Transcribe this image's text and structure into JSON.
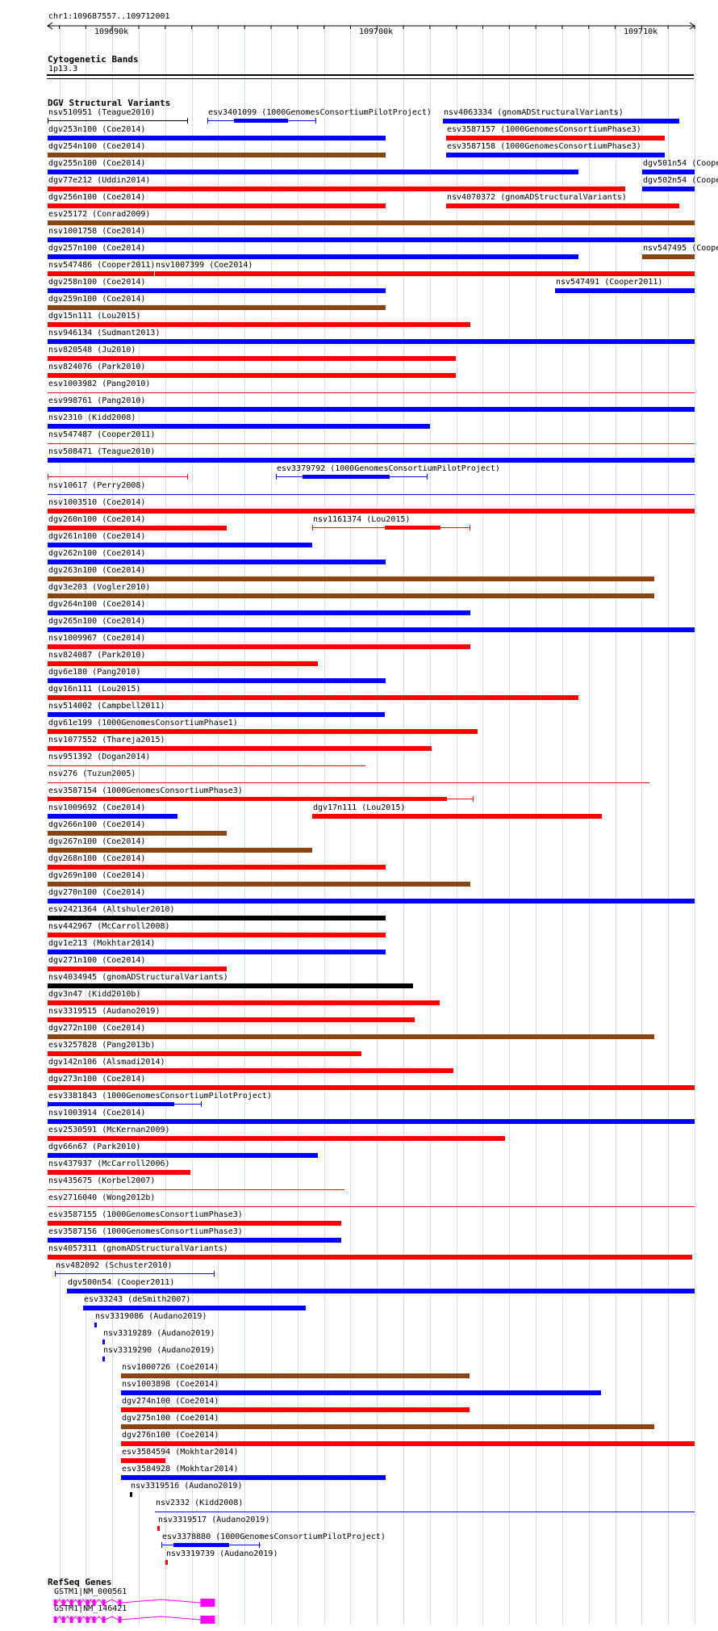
{
  "locus": "chr1:109687557..109712001",
  "ruler": {
    "start": 109687557,
    "end": 109712001,
    "ticks": [
      {
        "pos": 109690000,
        "label": "109690k"
      },
      {
        "pos": 109700000,
        "label": "109700k"
      },
      {
        "pos": 109710000,
        "label": "109710k"
      }
    ]
  },
  "cytoband": {
    "title": "Cytogenetic Bands",
    "band": "1p13.3"
  },
  "colors": {
    "blue": "#0000ff",
    "red": "#ff0000",
    "brown": "#8b4513",
    "black": "#000000",
    "magenta": "#ff00ff",
    "grid": "#c8e2f0"
  },
  "dgv_title": "DGV Structural Variants",
  "variants": [
    {
      "label": "nsv510951 (Teague2010)",
      "start": 109687557,
      "end": 109692870,
      "color": "black",
      "style": "line",
      "row": 0
    },
    {
      "label": "esv3401099 (1000GenomesConsortiumPilotProject)",
      "start": 109693600,
      "end": 109697720,
      "color": "blue",
      "style": "line",
      "inner": [
        109694600,
        109696640
      ],
      "row": 0
    },
    {
      "label": "nsv4063334 (gnomADStructuralVariants)",
      "start": 109702480,
      "end": 109711420,
      "color": "blue",
      "style": "bar",
      "row": 0
    },
    {
      "label": "dgv253n100 (Coe2014)",
      "start": 109687557,
      "end": 109700340,
      "color": "blue",
      "style": "bar",
      "row": 1
    },
    {
      "label": "esv3587157 (1000GenomesConsortiumPhase3)",
      "start": 109702600,
      "end": 109710850,
      "color": "red",
      "style": "bar",
      "row": 1
    },
    {
      "label": "dgv254n100 (Coe2014)",
      "start": 109687557,
      "end": 109700340,
      "color": "brown",
      "style": "bar",
      "row": 2
    },
    {
      "label": "esv3587158 (1000GenomesConsortiumPhase3)",
      "start": 109702600,
      "end": 109710850,
      "color": "blue",
      "style": "bar",
      "row": 2
    },
    {
      "label": "dgv255n100 (Coe2014)",
      "start": 109687557,
      "end": 109707620,
      "color": "blue",
      "style": "bar",
      "row": 3
    },
    {
      "label": "dgv501n54 (Cooper2011)",
      "start": 109710020,
      "end": 109712001,
      "color": "blue",
      "style": "bar",
      "row": 3
    },
    {
      "label": "dgv77e212 (Uddin2014)",
      "start": 109687557,
      "end": 109709370,
      "color": "red",
      "style": "bar",
      "row": 4
    },
    {
      "label": "dgv502n54 (Cooper2011)",
      "start": 109710020,
      "end": 109712001,
      "color": "blue",
      "style": "bar",
      "row": 4
    },
    {
      "label": "dgv256n100 (Coe2014)",
      "start": 109687557,
      "end": 109700340,
      "color": "red",
      "style": "bar",
      "row": 5
    },
    {
      "label": "nsv4070372 (gnomADStructuralVariants)",
      "start": 109702600,
      "end": 109711420,
      "color": "red",
      "style": "bar",
      "row": 5
    },
    {
      "label": "esv25172 (Conrad2009)",
      "start": 109687557,
      "end": 109712001,
      "color": "brown",
      "style": "bar",
      "row": 6
    },
    {
      "label": "nsv1001758 (Coe2014)",
      "start": 109687557,
      "end": 109712001,
      "color": "blue",
      "style": "bar",
      "row": 7
    },
    {
      "label": "dgv257n100 (Coe2014)",
      "start": 109687557,
      "end": 109707620,
      "color": "blue",
      "style": "bar",
      "row": 8
    },
    {
      "label": "nsv547495 (Cooper2011)",
      "start": 109710020,
      "end": 109712001,
      "color": "brown",
      "style": "bar",
      "row": 8
    },
    {
      "label": "nsv547486 (Cooper2011)",
      "start": 109687557,
      "end": 109691570,
      "color": "red",
      "style": "bar",
      "row": 9
    },
    {
      "label": "nsv1007399 (Coe2014)",
      "start": 109691620,
      "end": 109712001,
      "color": "red",
      "style": "bar",
      "row": 9
    },
    {
      "label": "dgv258n100 (Coe2014)",
      "start": 109687557,
      "end": 109700340,
      "color": "blue",
      "style": "bar",
      "row": 10
    },
    {
      "label": "nsv547491 (Cooper2011)",
      "start": 109706740,
      "end": 109712001,
      "color": "blue",
      "style": "bar",
      "row": 10
    },
    {
      "label": "dgv259n100 (Coe2014)",
      "start": 109687557,
      "end": 109700340,
      "color": "brown",
      "style": "bar",
      "row": 11
    },
    {
      "label": "dgv15n111 (Lou2015)",
      "start": 109687557,
      "end": 109703520,
      "color": "red",
      "style": "bar",
      "row": 12
    },
    {
      "label": "nsv946134 (Sudmant2013)",
      "start": 109687557,
      "end": 109712001,
      "color": "blue",
      "style": "bar",
      "row": 13
    },
    {
      "label": "nsv820548 (Ju2010)",
      "start": 109687557,
      "end": 109702970,
      "color": "red",
      "style": "bar",
      "row": 14
    },
    {
      "label": "nsv824076 (Park2010)",
      "start": 109687557,
      "end": 109702970,
      "color": "red",
      "style": "bar",
      "row": 15
    },
    {
      "label": "esv1003982 (Pang2010)",
      "start": 109687557,
      "end": 109712001,
      "color": "red",
      "style": "thin",
      "row": 16
    },
    {
      "label": "esv998761 (Pang2010)",
      "start": 109687557,
      "end": 109712001,
      "color": "blue",
      "style": "bar",
      "row": 17
    },
    {
      "label": "nsv2310 (Kidd2008)",
      "start": 109687557,
      "end": 109701990,
      "color": "blue",
      "style": "bar",
      "row": 18
    },
    {
      "label": "nsv547487 (Cooper2011)",
      "start": 109687557,
      "end": 109712001,
      "color": "red",
      "style": "thin",
      "row": 19
    },
    {
      "label": "nsv508471 (Teague2010)",
      "start": 109687557,
      "end": 109712001,
      "color": "blue",
      "style": "bar",
      "row": 20
    },
    {
      "label": "nsv508471 (Teague2010)",
      "start": 109687557,
      "end": 109692870,
      "color": "red",
      "style": "line",
      "row": 21,
      "hide_label": true
    },
    {
      "label": "esv3379792 (1000GenomesConsortiumPilotProject)",
      "start": 109696180,
      "end": 109701920,
      "color": "blue",
      "style": "line",
      "inner": [
        109697200,
        109700500
      ],
      "row": 21
    },
    {
      "label": "nsv10617 (Perry2008)",
      "start": 109687557,
      "end": 109712001,
      "color": "blue",
      "style": "thin",
      "row": 22
    },
    {
      "label": "nsv1003510 (Coe2014)",
      "start": 109687557,
      "end": 109712001,
      "color": "red",
      "style": "bar",
      "row": 23
    },
    {
      "label": "dgv260n100 (Coe2014)",
      "start": 109687557,
      "end": 109694320,
      "color": "red",
      "style": "bar",
      "row": 24
    },
    {
      "label": "nsv1161374 (Lou2015)",
      "start": 109697540,
      "end": 109703520,
      "color": "red",
      "style": "line",
      "inner": [
        109700300,
        109702400
      ],
      "row": 24
    },
    {
      "label": "dgv261n100 (Coe2014)",
      "start": 109687557,
      "end": 109697540,
      "color": "blue",
      "style": "bar",
      "row": 25
    },
    {
      "label": "dgv262n100 (Coe2014)",
      "start": 109687557,
      "end": 109700340,
      "color": "blue",
      "style": "bar",
      "row": 26
    },
    {
      "label": "dgv263n100 (Coe2014)",
      "start": 109687557,
      "end": 109710490,
      "color": "brown",
      "style": "bar",
      "row": 27
    },
    {
      "label": "dgv3e203 (Vogler2010)",
      "start": 109687557,
      "end": 109710490,
      "color": "brown",
      "style": "bar",
      "row": 28
    },
    {
      "label": "dgv264n100 (Coe2014)",
      "start": 109687557,
      "end": 109703520,
      "color": "blue",
      "style": "bar",
      "row": 29
    },
    {
      "label": "dgv265n100 (Coe2014)",
      "start": 109687557,
      "end": 109712001,
      "color": "blue",
      "style": "bar",
      "row": 30
    },
    {
      "label": "nsv1009967 (Coe2014)",
      "start": 109687557,
      "end": 109703520,
      "color": "red",
      "style": "bar",
      "row": 31
    },
    {
      "label": "nsv824087 (Park2010)",
      "start": 109687557,
      "end": 109697780,
      "color": "red",
      "style": "bar",
      "row": 32
    },
    {
      "label": "dgv6e180 (Pang2010)",
      "start": 109687557,
      "end": 109700340,
      "color": "blue",
      "style": "bar",
      "row": 33
    },
    {
      "label": "dgv16n111 (Lou2015)",
      "start": 109687557,
      "end": 109707620,
      "color": "red",
      "style": "bar",
      "row": 34
    },
    {
      "label": "nsv514002 (Campbell2011)",
      "start": 109687557,
      "end": 109700300,
      "color": "blue",
      "style": "bar",
      "row": 35
    },
    {
      "label": "dgv61e199 (1000GenomesConsortiumPhase1)",
      "start": 109687557,
      "end": 109703790,
      "color": "red",
      "style": "bar",
      "row": 36
    },
    {
      "label": "nsv1077552 (Thareja2015)",
      "start": 109687557,
      "end": 109702080,
      "color": "red",
      "style": "bar",
      "row": 37
    },
    {
      "label": "nsv951392 (Dogan2014)",
      "start": 109687557,
      "end": 109699560,
      "color": "red",
      "style": "thin",
      "row": 38
    },
    {
      "label": "nsv276 (Tuzun2005)",
      "start": 109687557,
      "end": 109710300,
      "color": "red",
      "style": "thin",
      "row": 39
    },
    {
      "label": "esv3587154 (1000GenomesConsortiumPhase3)",
      "start": 109687557,
      "end": 109703650,
      "color": "red",
      "style": "line",
      "inner": [
        109687557,
        109702650
      ],
      "row": 40
    },
    {
      "label": "nsv1009692 (Coe2014)",
      "start": 109687557,
      "end": 109692450,
      "color": "blue",
      "style": "bar",
      "row": 41
    },
    {
      "label": "dgv17n111 (Lou2015)",
      "start": 109697540,
      "end": 109708480,
      "color": "red",
      "style": "bar",
      "row": 41
    },
    {
      "label": "dgv266n100 (Coe2014)",
      "start": 109687557,
      "end": 109694320,
      "color": "brown",
      "style": "bar",
      "row": 42
    },
    {
      "label": "dgv267n100 (Coe2014)",
      "start": 109687557,
      "end": 109697540,
      "color": "brown",
      "style": "bar",
      "row": 43
    },
    {
      "label": "dgv268n100 (Coe2014)",
      "start": 109687557,
      "end": 109700340,
      "color": "red",
      "style": "bar",
      "row": 44
    },
    {
      "label": "dgv269n100 (Coe2014)",
      "start": 109687557,
      "end": 109703520,
      "color": "brown",
      "style": "bar",
      "row": 45
    },
    {
      "label": "dgv270n100 (Coe2014)",
      "start": 109687557,
      "end": 109712001,
      "color": "blue",
      "style": "bar",
      "row": 46
    },
    {
      "label": "esv2421364 (Altshuler2010)",
      "start": 109687557,
      "end": 109700340,
      "color": "black",
      "style": "bar",
      "row": 47
    },
    {
      "label": "nsv442967 (McCarroll2008)",
      "start": 109687557,
      "end": 109700340,
      "color": "red",
      "style": "bar",
      "row": 48
    },
    {
      "label": "dgv1e213 (Mokhtar2014)",
      "start": 109687557,
      "end": 109700340,
      "color": "blue",
      "style": "bar",
      "row": 49
    },
    {
      "label": "dgv271n100 (Coe2014)",
      "start": 109687557,
      "end": 109694320,
      "color": "red",
      "style": "bar",
      "row": 50
    },
    {
      "label": "nsv4034945 (gnomADStructuralVariants)",
      "start": 109687557,
      "end": 109701370,
      "color": "black",
      "style": "bar",
      "row": 51
    },
    {
      "label": "dgv3n47 (Kidd2010b)",
      "start": 109687557,
      "end": 109702380,
      "color": "red",
      "style": "bar",
      "row": 52
    },
    {
      "label": "nsv3319515 (Audano2019)",
      "start": 109687557,
      "end": 109701430,
      "color": "red",
      "style": "bar",
      "row": 53
    },
    {
      "label": "dgv272n100 (Coe2014)",
      "start": 109687557,
      "end": 109710490,
      "color": "brown",
      "style": "bar",
      "row": 54
    },
    {
      "label": "esv3257828 (Pang2013b)",
      "start": 109687557,
      "end": 109699410,
      "color": "red",
      "style": "bar",
      "row": 55
    },
    {
      "label": "dgv142n106 (Alsmadi2014)",
      "start": 109687557,
      "end": 109702880,
      "color": "red",
      "style": "bar",
      "row": 56
    },
    {
      "label": "dgv273n100 (Coe2014)",
      "start": 109687557,
      "end": 109712001,
      "color": "red",
      "style": "bar",
      "row": 57
    },
    {
      "label": "esv3381843 (1000GenomesConsortiumPilotProject)",
      "start": 109687557,
      "end": 109693370,
      "color": "blue",
      "style": "line",
      "inner": [
        109687557,
        109692350
      ],
      "row": 58
    },
    {
      "label": "nsv1003914 (Coe2014)",
      "start": 109687557,
      "end": 109712001,
      "color": "blue",
      "style": "bar",
      "row": 59
    },
    {
      "label": "esv2530591 (McKernan2009)",
      "start": 109687557,
      "end": 109704850,
      "color": "red",
      "style": "bar",
      "row": 60
    },
    {
      "label": "dgv66n67 (Park2010)",
      "start": 109687557,
      "end": 109697780,
      "color": "blue",
      "style": "bar",
      "row": 61
    },
    {
      "label": "nsv437937 (McCarroll2006)",
      "start": 109687557,
      "end": 109692950,
      "color": "red",
      "style": "bar",
      "row": 62
    },
    {
      "label": "nsv435675 (Korbel2007)",
      "start": 109687557,
      "end": 109698780,
      "color": "red",
      "style": "thin",
      "row": 63
    },
    {
      "label": "esv2716040 (Wong2012b)",
      "start": 109687557,
      "end": 109712001,
      "color": "red",
      "style": "thin",
      "row": 64
    },
    {
      "label": "esv3587155 (1000GenomesConsortiumPhase3)",
      "start": 109687557,
      "end": 109698650,
      "color": "red",
      "style": "bar",
      "row": 65
    },
    {
      "label": "esv3587156 (1000GenomesConsortiumPhase3)",
      "start": 109687557,
      "end": 109698650,
      "color": "blue",
      "style": "bar",
      "row": 66
    },
    {
      "label": "nsv4057311 (gnomADStructuralVariants)",
      "start": 109687557,
      "end": 109711920,
      "color": "red",
      "style": "bar",
      "row": 67
    },
    {
      "label": "nsv482092 (Schuster2010)",
      "start": 109687830,
      "end": 109693870,
      "color": "blue",
      "style": "line",
      "row": 68
    },
    {
      "label": "dgv500n54 (Cooper2011)",
      "start": 109688300,
      "end": 109712001,
      "color": "blue",
      "style": "bar",
      "row": 69
    },
    {
      "label": "esv33243 (deSmith2007)",
      "start": 109688900,
      "end": 109697320,
      "color": "blue",
      "style": "bar",
      "row": 70
    },
    {
      "label": "nsv3319086 (Audano2019)",
      "start": 109689320,
      "end": 109689380,
      "color": "blue",
      "style": "dot",
      "row": 71
    },
    {
      "label": "nsv3319289 (Audano2019)",
      "start": 109689620,
      "end": 109689680,
      "color": "blue",
      "style": "dot",
      "row": 72
    },
    {
      "label": "nsv3319290 (Audano2019)",
      "start": 109689620,
      "end": 109689680,
      "color": "blue",
      "style": "dot",
      "row": 73
    },
    {
      "label": "nsv1000726 (Coe2014)",
      "start": 109690340,
      "end": 109703520,
      "color": "brown",
      "style": "bar",
      "row": 74
    },
    {
      "label": "nsv1003898 (Coe2014)",
      "start": 109690340,
      "end": 109708480,
      "color": "blue",
      "style": "bar",
      "row": 75
    },
    {
      "label": "dgv274n100 (Coe2014)",
      "start": 109690340,
      "end": 109703520,
      "color": "red",
      "style": "bar",
      "row": 76
    },
    {
      "label": "dgv275n100 (Coe2014)",
      "start": 109690340,
      "end": 109710490,
      "color": "brown",
      "style": "bar",
      "row": 77
    },
    {
      "label": "dgv276n100 (Coe2014)",
      "start": 109690340,
      "end": 109712001,
      "color": "red",
      "style": "bar",
      "row": 78
    },
    {
      "label": "esv3584594 (Mokhtar2014)",
      "start": 109690340,
      "end": 109692030,
      "color": "red",
      "style": "bar",
      "row": 79
    },
    {
      "label": "esv3584928 (Mokhtar2014)",
      "start": 109690340,
      "end": 109700340,
      "color": "blue",
      "style": "bar",
      "row": 80
    },
    {
      "label": "nsv3319516 (Audano2019)",
      "start": 109690680,
      "end": 109690740,
      "color": "black",
      "style": "dot",
      "row": 81
    },
    {
      "label": "nsv2332 (Kidd2008)",
      "start": 109691620,
      "end": 109712001,
      "color": "blue",
      "style": "thin",
      "row": 82
    },
    {
      "label": "nsv3319517 (Audano2019)",
      "start": 109691700,
      "end": 109691760,
      "color": "red",
      "style": "dot",
      "row": 83
    },
    {
      "label": "esv3378880 (1000GenomesConsortiumPilotProject)",
      "start": 109691840,
      "end": 109695580,
      "color": "blue",
      "style": "line",
      "inner": [
        109692300,
        109694400
      ],
      "row": 84
    },
    {
      "label": "nsv3319739 (Audano2019)",
      "start": 109692000,
      "end": 109692100,
      "color": "red",
      "style": "dot",
      "row": 85
    }
  ],
  "refseq": {
    "title": "RefSeq Genes",
    "genes": [
      {
        "label": "GSTM1|NM_000561",
        "start": 109687790,
        "end": 109693880
      },
      {
        "label": "GSTM1|NM_146421",
        "start": 109687790,
        "end": 109693880
      }
    ]
  }
}
